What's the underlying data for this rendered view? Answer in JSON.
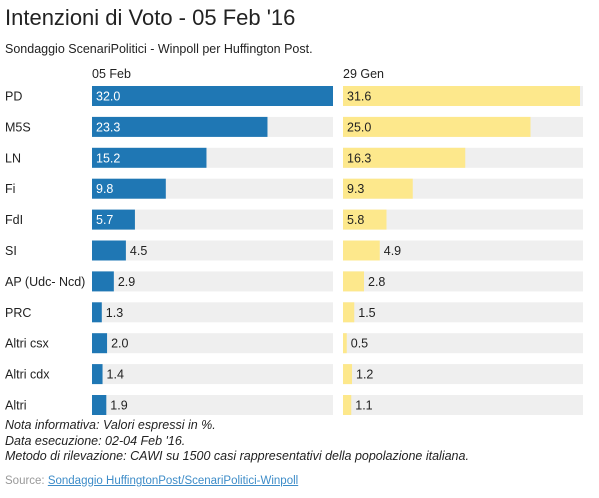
{
  "header": {
    "title": "Intenzioni di Voto - 05 Feb '16",
    "subtitle": "Sondaggio ScenariPolitici - Winpoll per Huffington Post."
  },
  "colors": {
    "series1": "#1f77b4",
    "series2": "#fde88c",
    "track": "#efefef"
  },
  "chart_data": {
    "type": "bar",
    "orientation": "horizontal",
    "categories": [
      "PD",
      "M5S",
      "LN",
      "Fi",
      "FdI",
      "SI",
      "AP (Udc- Ncd)",
      "PRC",
      "Altri csx",
      "Altri cdx",
      "Altri"
    ],
    "series": [
      {
        "name": "05 Feb",
        "values": [
          32.0,
          23.3,
          15.2,
          9.8,
          5.7,
          4.5,
          2.9,
          1.3,
          2.0,
          1.4,
          1.9
        ]
      },
      {
        "name": "29 Gen",
        "values": [
          31.6,
          25.0,
          16.3,
          9.3,
          5.8,
          4.9,
          2.8,
          1.5,
          0.5,
          1.2,
          1.1
        ]
      }
    ],
    "value_labels": [
      [
        "32.0",
        "23.3",
        "15.2",
        "9.8",
        "5.7",
        "4.5",
        "2.9",
        "1.3",
        "2.0",
        "1.4",
        "1.9"
      ],
      [
        "31.6",
        "25.0",
        "16.3",
        "9.3",
        "5.8",
        "4.9",
        "2.8",
        "1.5",
        "0.5",
        "1.2",
        "1.1"
      ]
    ],
    "xlim": [
      0,
      32
    ]
  },
  "notes": [
    "Nota informativa: Valori espressi in %.",
    "Data esecuzione: 02-04 Feb '16.",
    "Metodo di rilevazione: CAWI su 1500 casi rappresentativi della popolazione italiana."
  ],
  "source": {
    "prefix": "Source: ",
    "link_text": "Sondaggio HuffingtonPost/ScenariPolitici-Winpoll"
  }
}
